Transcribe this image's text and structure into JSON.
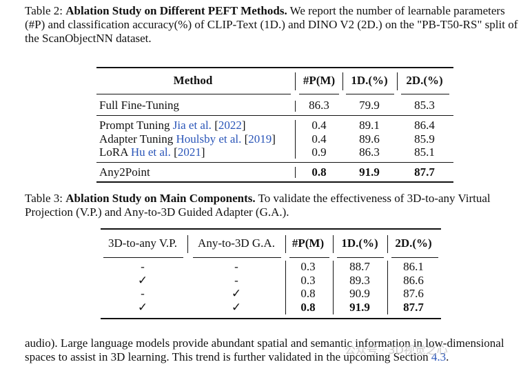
{
  "table2": {
    "caption_label": "Table 2:",
    "caption_title": "Ablation Study on Different PEFT Methods.",
    "caption_text": " We report the number of learnable parameters (#P) and classification accuracy(%) of CLIP-Text (1D.) and DINO V2 (2D.) on the \"PB-T50-RS\" split of the ScanObjectNN dataset.",
    "headers": [
      "Method",
      "#P(M)",
      "1D.(%)",
      "2D.(%)"
    ],
    "rows": [
      {
        "method": "Full Fine-Tuning",
        "cite_author": "",
        "cite_year": "",
        "p": "86.3",
        "d1": "79.9",
        "d2": "85.3"
      },
      {
        "method": "Prompt Tuning",
        "cite_author": "Jia et al.",
        "cite_year": "2022",
        "p": "0.4",
        "d1": "89.1",
        "d2": "86.4"
      },
      {
        "method": "Adapter Tuning",
        "cite_author": "Houlsby et al.",
        "cite_year": "2019",
        "p": "0.4",
        "d1": "89.6",
        "d2": "85.9"
      },
      {
        "method": "LoRA",
        "cite_author": "Hu et al.",
        "cite_year": "2021",
        "p": "0.9",
        "d1": "86.3",
        "d2": "85.1"
      },
      {
        "method": "Any2Point",
        "cite_author": "",
        "cite_year": "",
        "p": "0.8",
        "d1": "91.9",
        "d2": "87.7"
      }
    ]
  },
  "table3": {
    "caption_label": "Table 3:",
    "caption_title": "Ablation Study on Main Components.",
    "caption_text": " To validate the effectiveness of 3D-to-any Virtual Projection (V.P.) and Any-to-3D Guided Adapter (G.A.).",
    "headers": [
      "3D-to-any V.P.",
      "Any-to-3D G.A.",
      "#P(M)",
      "1D.(%)",
      "2D.(%)"
    ],
    "rows": [
      {
        "vp": "-",
        "ga": "-",
        "p": "0.3",
        "d1": "88.7",
        "d2": "86.1"
      },
      {
        "vp": "✓",
        "ga": "-",
        "p": "0.3",
        "d1": "89.3",
        "d2": "86.6"
      },
      {
        "vp": "-",
        "ga": "✓",
        "p": "0.8",
        "d1": "90.9",
        "d2": "87.6"
      },
      {
        "vp": "✓",
        "ga": "✓",
        "p": "0.8",
        "d1": "91.9",
        "d2": "87.7"
      }
    ]
  },
  "body_text": {
    "line1": "audio). Large language models provide abundant spatial and semantic information in low-dimensional",
    "line2_pre": "spaces to assist in 3D learning. This trend is further validated in the upcoming Section ",
    "line2_ref": "4.3",
    "line2_post": "."
  },
  "watermark": "公众号 · 3D视觉之心"
}
